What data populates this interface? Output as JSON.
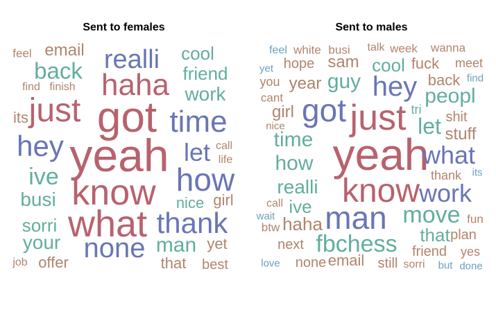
{
  "colors": {
    "red": "#b8626e",
    "blue": "#6a75b5",
    "teal": "#62ae9e",
    "tan": "#b0846c",
    "lightblue": "#6aa0c0"
  },
  "chart_data": [
    {
      "type": "wordcloud",
      "title": "Sent to females",
      "words": [
        {
          "text": "feel",
          "color": "tan"
        },
        {
          "text": "email",
          "color": "tan"
        },
        {
          "text": "realli",
          "color": "blue"
        },
        {
          "text": "cool",
          "color": "teal"
        },
        {
          "text": "back",
          "color": "teal"
        },
        {
          "text": "haha",
          "color": "red"
        },
        {
          "text": "friend",
          "color": "teal"
        },
        {
          "text": "find",
          "color": "tan"
        },
        {
          "text": "finish",
          "color": "tan"
        },
        {
          "text": "work",
          "color": "teal"
        },
        {
          "text": "just",
          "color": "red"
        },
        {
          "text": "got",
          "color": "red"
        },
        {
          "text": "time",
          "color": "blue"
        },
        {
          "text": "its",
          "color": "tan"
        },
        {
          "text": "hey",
          "color": "blue"
        },
        {
          "text": "yeah",
          "color": "red"
        },
        {
          "text": "let",
          "color": "blue"
        },
        {
          "text": "call",
          "color": "tan"
        },
        {
          "text": "life",
          "color": "tan"
        },
        {
          "text": "ive",
          "color": "teal"
        },
        {
          "text": "how",
          "color": "blue"
        },
        {
          "text": "know",
          "color": "red"
        },
        {
          "text": "busi",
          "color": "teal"
        },
        {
          "text": "nice",
          "color": "teal"
        },
        {
          "text": "girl",
          "color": "tan"
        },
        {
          "text": "sorri",
          "color": "teal"
        },
        {
          "text": "what",
          "color": "red"
        },
        {
          "text": "thank",
          "color": "blue"
        },
        {
          "text": "your",
          "color": "teal"
        },
        {
          "text": "none",
          "color": "blue"
        },
        {
          "text": "man",
          "color": "teal"
        },
        {
          "text": "yet",
          "color": "tan"
        },
        {
          "text": "job",
          "color": "tan"
        },
        {
          "text": "offer",
          "color": "tan"
        },
        {
          "text": "that",
          "color": "tan"
        },
        {
          "text": "best",
          "color": "tan"
        }
      ]
    },
    {
      "type": "wordcloud",
      "title": "Sent to males",
      "words": [
        {
          "text": "feel",
          "color": "lightblue"
        },
        {
          "text": "white",
          "color": "tan"
        },
        {
          "text": "busi",
          "color": "tan"
        },
        {
          "text": "talk",
          "color": "tan"
        },
        {
          "text": "week",
          "color": "tan"
        },
        {
          "text": "wanna",
          "color": "tan"
        },
        {
          "text": "yet",
          "color": "lightblue"
        },
        {
          "text": "hope",
          "color": "tan"
        },
        {
          "text": "sam",
          "color": "tan"
        },
        {
          "text": "cool",
          "color": "teal"
        },
        {
          "text": "fuck",
          "color": "tan"
        },
        {
          "text": "meet",
          "color": "tan"
        },
        {
          "text": "you",
          "color": "tan"
        },
        {
          "text": "year",
          "color": "tan"
        },
        {
          "text": "guy",
          "color": "teal"
        },
        {
          "text": "hey",
          "color": "blue"
        },
        {
          "text": "back",
          "color": "tan"
        },
        {
          "text": "find",
          "color": "lightblue"
        },
        {
          "text": "cant",
          "color": "tan"
        },
        {
          "text": "peopl",
          "color": "teal"
        },
        {
          "text": "girl",
          "color": "tan"
        },
        {
          "text": "got",
          "color": "blue"
        },
        {
          "text": "just",
          "color": "red"
        },
        {
          "text": "tri",
          "color": "teal"
        },
        {
          "text": "shit",
          "color": "tan"
        },
        {
          "text": "nice",
          "color": "tan"
        },
        {
          "text": "let",
          "color": "teal"
        },
        {
          "text": "stuff",
          "color": "tan"
        },
        {
          "text": "time",
          "color": "teal"
        },
        {
          "text": "yeah",
          "color": "red"
        },
        {
          "text": "what",
          "color": "blue"
        },
        {
          "text": "how",
          "color": "teal"
        },
        {
          "text": "thank",
          "color": "tan"
        },
        {
          "text": "its",
          "color": "lightblue"
        },
        {
          "text": "realli",
          "color": "teal"
        },
        {
          "text": "know",
          "color": "red"
        },
        {
          "text": "work",
          "color": "blue"
        },
        {
          "text": "call",
          "color": "tan"
        },
        {
          "text": "ive",
          "color": "teal"
        },
        {
          "text": "wait",
          "color": "lightblue"
        },
        {
          "text": "man",
          "color": "blue"
        },
        {
          "text": "move",
          "color": "teal"
        },
        {
          "text": "fun",
          "color": "tan"
        },
        {
          "text": "btw",
          "color": "tan"
        },
        {
          "text": "haha",
          "color": "tan"
        },
        {
          "text": "that",
          "color": "teal"
        },
        {
          "text": "plan",
          "color": "tan"
        },
        {
          "text": "next",
          "color": "tan"
        },
        {
          "text": "fbchess",
          "color": "teal"
        },
        {
          "text": "friend",
          "color": "tan"
        },
        {
          "text": "yes",
          "color": "tan"
        },
        {
          "text": "love",
          "color": "lightblue"
        },
        {
          "text": "none",
          "color": "tan"
        },
        {
          "text": "email",
          "color": "tan"
        },
        {
          "text": "still",
          "color": "tan"
        },
        {
          "text": "sorri",
          "color": "tan"
        },
        {
          "text": "but",
          "color": "lightblue"
        },
        {
          "text": "done",
          "color": "lightblue"
        }
      ]
    }
  ]
}
